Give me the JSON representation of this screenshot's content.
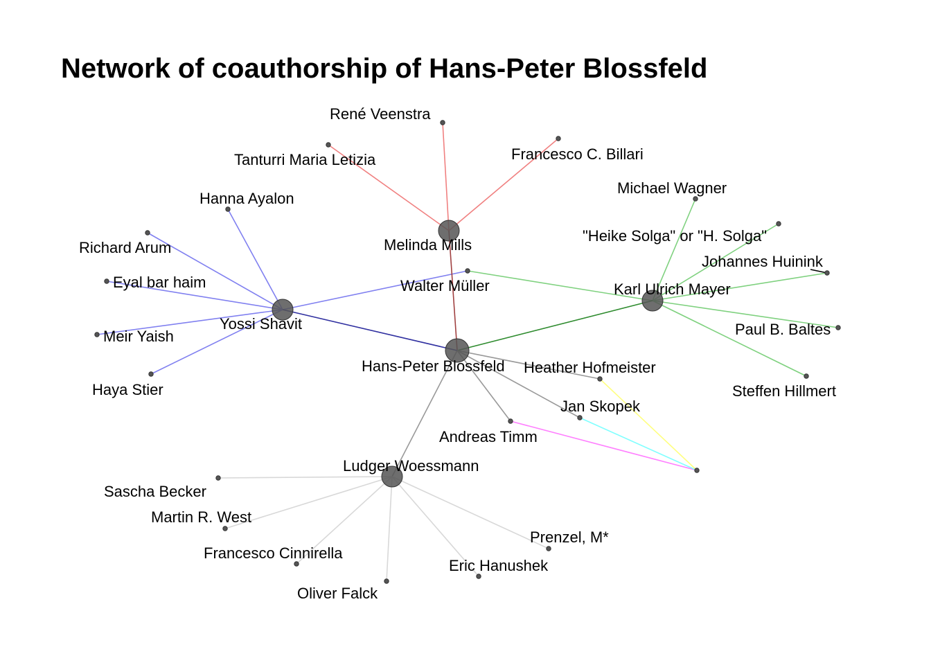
{
  "title": "Network of coauthorship of Hans-Peter Blossfeld",
  "colors": {
    "melinda": "#f08080",
    "karl": "#7fd17f",
    "yossi": "#8080f0",
    "blossfeld": "#999999",
    "ludger": "#d8d8d8",
    "magenta": "#ff80ff",
    "cyan": "#80ffff",
    "yellow": "#ffff80",
    "dark_red": "#a04040",
    "dark_green": "#2e8b2e",
    "dark_blue": "#3030a0",
    "black": "#000000"
  },
  "nodes": [
    {
      "id": "blossfeld",
      "label": "Hans-Peter Blossfeld",
      "hub": true
    },
    {
      "id": "melinda",
      "label": "Melinda Mills",
      "hub": true
    },
    {
      "id": "karl",
      "label": "Karl Ulrich Mayer",
      "hub": true
    },
    {
      "id": "yossi",
      "label": "Yossi Shavit",
      "hub": true
    },
    {
      "id": "ludger",
      "label": "Ludger Woessmann",
      "hub": true
    },
    {
      "id": "rene",
      "label": "René Veenstra"
    },
    {
      "id": "tanturri",
      "label": "Tanturri Maria Letizia"
    },
    {
      "id": "billari",
      "label": "Francesco C. Billari"
    },
    {
      "id": "wagner",
      "label": "Michael Wagner"
    },
    {
      "id": "solga",
      "label": "\"Heike Solga\" or \"H. Solga\""
    },
    {
      "id": "huinink",
      "label": "Johannes Huinink"
    },
    {
      "id": "baltes",
      "label": "Paul B. Baltes"
    },
    {
      "id": "hillmert",
      "label": "Steffen Hillmert"
    },
    {
      "id": "muller",
      "label": "Walter Müller"
    },
    {
      "id": "ayalon",
      "label": "Hanna Ayalon"
    },
    {
      "id": "arum",
      "label": "Richard Arum"
    },
    {
      "id": "eyal",
      "label": "Eyal bar haim"
    },
    {
      "id": "yaish",
      "label": "Meir Yaish"
    },
    {
      "id": "stier",
      "label": "Haya Stier"
    },
    {
      "id": "hofmeister",
      "label": "Heather Hofmeister"
    },
    {
      "id": "skopek",
      "label": "Jan Skopek"
    },
    {
      "id": "timm",
      "label": "Andreas Timm"
    },
    {
      "id": "unnamed",
      "label": ""
    },
    {
      "id": "becker",
      "label": "Sascha Becker"
    },
    {
      "id": "west",
      "label": "Martin R. West"
    },
    {
      "id": "cinnirella",
      "label": "Francesco Cinnirella"
    },
    {
      "id": "falck",
      "label": "Oliver Falck"
    },
    {
      "id": "hanushek",
      "label": "Eric Hanushek"
    },
    {
      "id": "prenzel",
      "label": "Prenzel, M*"
    }
  ],
  "edges": [
    {
      "source": "melinda",
      "target": "rene",
      "color": "melinda"
    },
    {
      "source": "melinda",
      "target": "tanturri",
      "color": "melinda"
    },
    {
      "source": "melinda",
      "target": "billari",
      "color": "melinda"
    },
    {
      "source": "karl",
      "target": "wagner",
      "color": "karl"
    },
    {
      "source": "karl",
      "target": "solga",
      "color": "karl"
    },
    {
      "source": "karl",
      "target": "huinink",
      "color": "karl"
    },
    {
      "source": "karl",
      "target": "baltes",
      "color": "karl"
    },
    {
      "source": "karl",
      "target": "hillmert",
      "color": "karl"
    },
    {
      "source": "karl",
      "target": "muller",
      "color": "karl"
    },
    {
      "source": "yossi",
      "target": "ayalon",
      "color": "yossi"
    },
    {
      "source": "yossi",
      "target": "arum",
      "color": "yossi"
    },
    {
      "source": "yossi",
      "target": "eyal",
      "color": "yossi"
    },
    {
      "source": "yossi",
      "target": "yaish",
      "color": "yossi"
    },
    {
      "source": "yossi",
      "target": "stier",
      "color": "yossi"
    },
    {
      "source": "yossi",
      "target": "muller",
      "color": "yossi"
    },
    {
      "source": "blossfeld",
      "target": "melinda",
      "color": "dark_red"
    },
    {
      "source": "blossfeld",
      "target": "karl",
      "color": "dark_green"
    },
    {
      "source": "blossfeld",
      "target": "yossi",
      "color": "dark_blue"
    },
    {
      "source": "blossfeld",
      "target": "ludger",
      "color": "blossfeld"
    },
    {
      "source": "blossfeld",
      "target": "hofmeister",
      "color": "blossfeld"
    },
    {
      "source": "blossfeld",
      "target": "skopek",
      "color": "blossfeld"
    },
    {
      "source": "blossfeld",
      "target": "timm",
      "color": "blossfeld"
    },
    {
      "source": "timm",
      "target": "unnamed",
      "color": "magenta"
    },
    {
      "source": "skopek",
      "target": "unnamed",
      "color": "cyan"
    },
    {
      "source": "hofmeister",
      "target": "unnamed",
      "color": "yellow"
    },
    {
      "source": "ludger",
      "target": "becker",
      "color": "ludger"
    },
    {
      "source": "ludger",
      "target": "west",
      "color": "ludger"
    },
    {
      "source": "ludger",
      "target": "cinnirella",
      "color": "ludger"
    },
    {
      "source": "ludger",
      "target": "falck",
      "color": "ludger"
    },
    {
      "source": "ludger",
      "target": "hanushek",
      "color": "ludger"
    },
    {
      "source": "ludger",
      "target": "prenzel",
      "color": "ludger"
    },
    {
      "source": "huinink",
      "target": "huinink",
      "color": "black"
    }
  ]
}
